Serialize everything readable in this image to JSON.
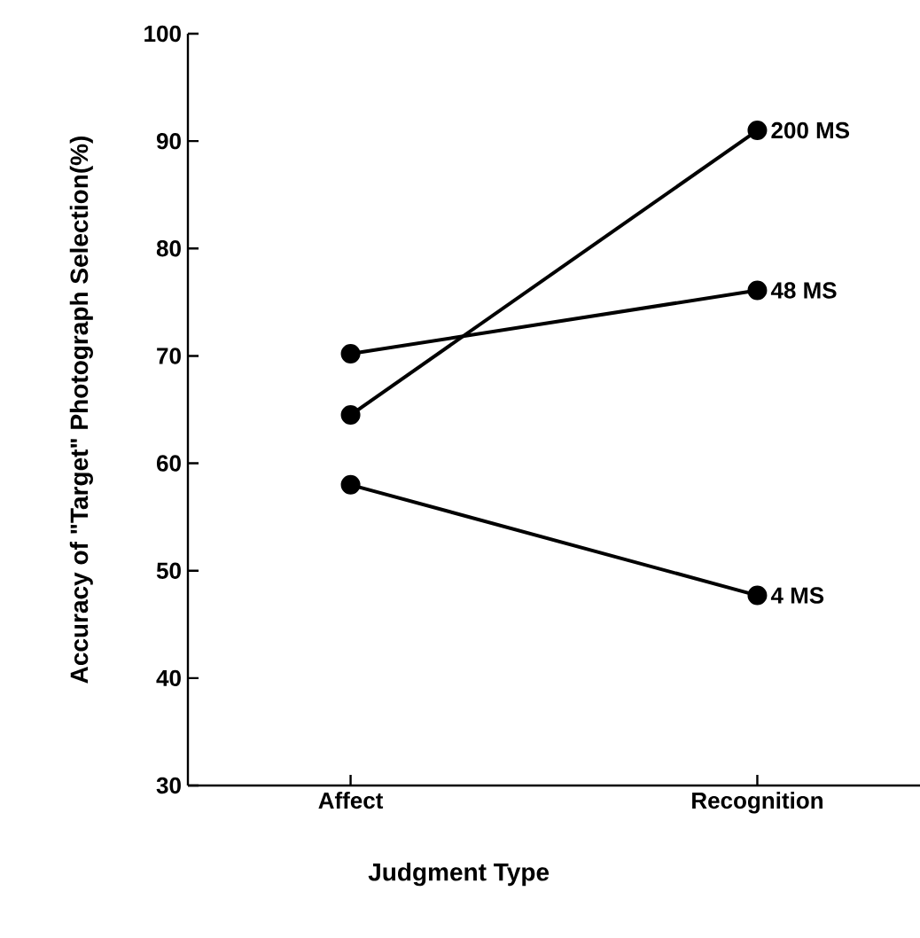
{
  "chart_data": {
    "type": "line",
    "xlabel": "Judgment Type",
    "ylabel": "Accuracy of \"Target\" Photograph Selection(%)",
    "categories": [
      "Affect",
      "Recognition"
    ],
    "series": [
      {
        "name": "200 MS",
        "color": "#000000",
        "values": [
          64.5,
          91.0
        ]
      },
      {
        "name": "48 MS",
        "color": "#000000",
        "values": [
          70.2,
          76.1
        ]
      },
      {
        "name": "4 MS",
        "color": "#000000",
        "values": [
          58.0,
          47.7
        ]
      }
    ],
    "ylim": [
      30,
      100
    ],
    "yticks": [
      30,
      40,
      50,
      60,
      70,
      80,
      90,
      100
    ],
    "marker": "circle",
    "line_style": "solid",
    "grid": false,
    "legend": false
  }
}
